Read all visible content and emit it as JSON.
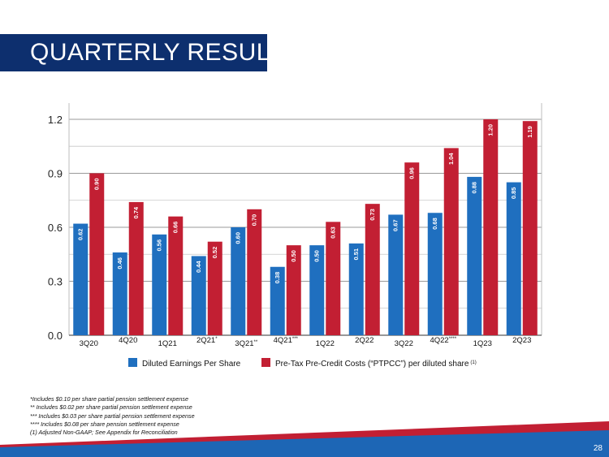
{
  "header": {
    "title": "QUARTERLY RESULTS"
  },
  "chart_data": {
    "type": "bar",
    "categories": [
      "3Q20",
      "4Q20",
      "1Q21",
      "2Q21",
      "3Q21",
      "4Q21",
      "1Q22",
      "2Q22",
      "3Q22",
      "4Q22",
      "1Q23",
      "2Q23"
    ],
    "category_markers": [
      "",
      "",
      "",
      "*",
      "**",
      "***",
      "",
      "",
      "",
      "****",
      "",
      ""
    ],
    "series": [
      {
        "name": "Diluted Earnings Per Share",
        "values": [
          0.62,
          0.46,
          0.56,
          0.44,
          0.6,
          0.38,
          0.5,
          0.51,
          0.67,
          0.68,
          0.88,
          0.85
        ],
        "labels": [
          "0.62",
          "0.46",
          "0.56",
          "0.44",
          "0.60",
          "0.38",
          "0.50",
          "0.51",
          "0.67",
          "0.68",
          "0.88",
          "0.85"
        ],
        "color": "#1f6fbf"
      },
      {
        "name": "Pre-Tax Pre-Credit Costs (“PTPCC”) per diluted share",
        "name_marker": "(1)",
        "values": [
          0.9,
          0.74,
          0.66,
          0.52,
          0.7,
          0.5,
          0.63,
          0.73,
          0.96,
          1.04,
          1.2,
          1.19
        ],
        "labels": [
          "0.90",
          "0.74",
          "0.66",
          "0.52",
          "0.70",
          "0.50",
          "0.63",
          "0.73",
          "0.96",
          "1.04",
          "1.20",
          "1.19"
        ],
        "color": "#c21f33"
      }
    ],
    "yticks": [
      0.0,
      0.3,
      0.6,
      0.9,
      1.2
    ],
    "ytick_labels": [
      "0.0",
      "0.3",
      "0.6",
      "0.9",
      "1.2"
    ],
    "ylim": [
      0,
      1.29
    ],
    "grid": true,
    "legend_position": "bottom"
  },
  "footnotes": [
    "*Includes $0.10 per share partial pension settlement expense",
    "** Includes $0.02 per share partial pension settlement expense",
    "*** Includes $0.03 per share partial pension settlement expense",
    "**** Includes $0.08 per share pension settlement expense",
    "(1) Adjusted Non-GAAP; See Appendix for Reconciliation"
  ],
  "page_number": "28",
  "colors": {
    "navy": "#0d2f6e",
    "blue": "#1f6fbf",
    "red": "#c21f33",
    "band_blue": "#1d66b5"
  }
}
